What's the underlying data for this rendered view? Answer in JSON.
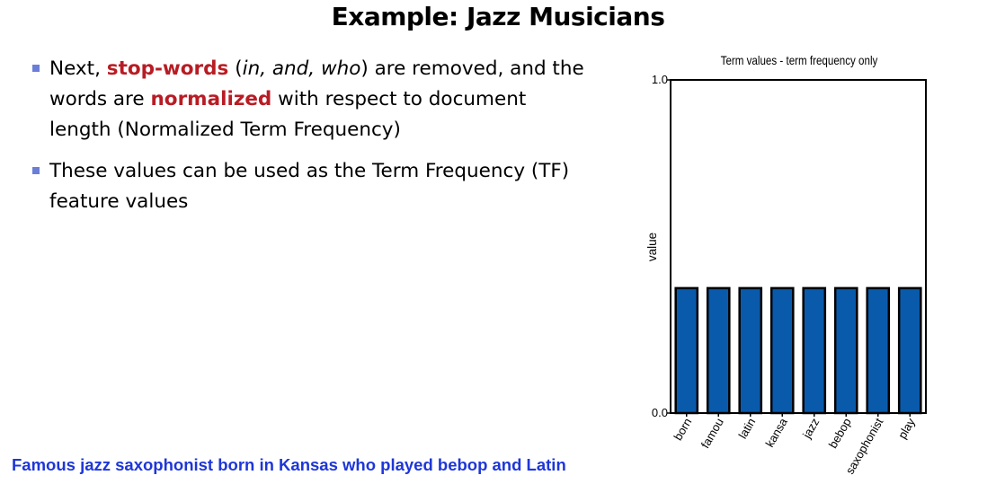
{
  "slide": {
    "title": "Example: Jazz Musicians",
    "bullets": [
      {
        "parts": [
          {
            "text": "Next, ",
            "style": "normal"
          },
          {
            "text": "stop-words",
            "style": "highlight"
          },
          {
            "text": " (",
            "style": "normal"
          },
          {
            "text": "in, and, who",
            "style": "italic"
          },
          {
            "text": ") are removed, and the words are ",
            "style": "normal"
          },
          {
            "text": "normalized",
            "style": "highlight"
          },
          {
            "text": " with respect to document length (Normalized Term Frequency)",
            "style": "normal"
          }
        ]
      },
      {
        "parts": [
          {
            "text": "These values can be used as the Term Frequency (TF) feature values",
            "style": "normal"
          }
        ]
      }
    ],
    "footer": "Famous jazz saxophonist born in Kansas who played bebop and Latin"
  },
  "colors": {
    "highlight": "#b81c24",
    "bullet_marker": "#6a7ed8",
    "footer": "#1e36d8",
    "bar_fill": "#0a5aab"
  },
  "chart_data": {
    "type": "bar",
    "title": "Term values - term frequency only",
    "xlabel": "",
    "ylabel": "value",
    "categories": [
      "born",
      "famou",
      "latin",
      "kansa",
      "jazz",
      "bebop",
      "saxophonist",
      "play"
    ],
    "values": [
      0.375,
      0.375,
      0.375,
      0.375,
      0.375,
      0.375,
      0.375,
      0.375
    ],
    "ylim": [
      0.0,
      1.0
    ],
    "yticks": [
      "0.0",
      "1.0"
    ],
    "grid": false,
    "legend": "none"
  }
}
